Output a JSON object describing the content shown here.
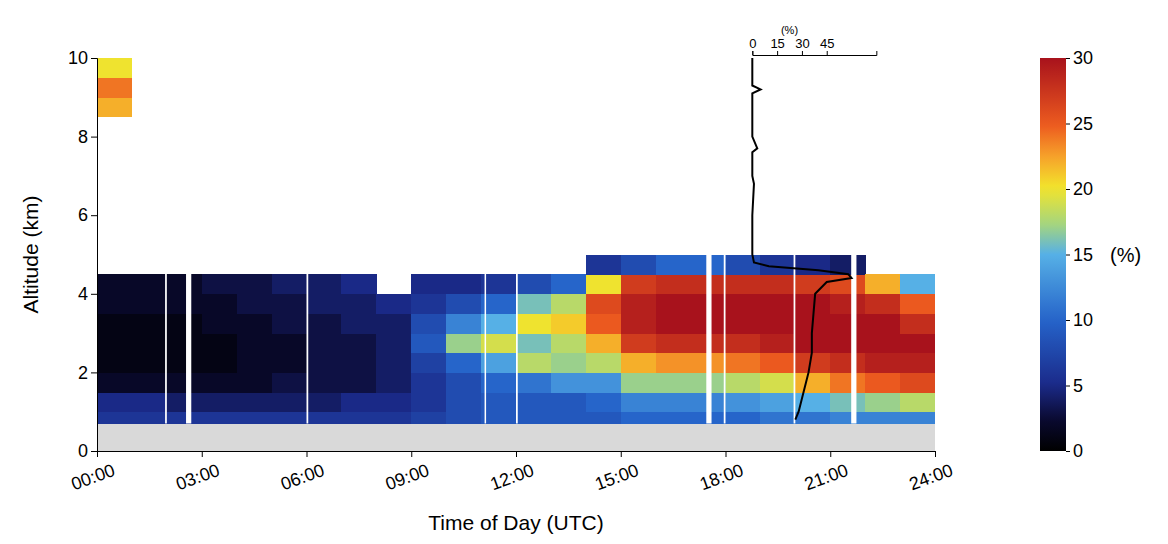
{
  "chart_data": {
    "type": "heatmap",
    "x_label": "Time of Day (UTC)",
    "y_label": "Altitude (km)",
    "xlim": [
      0,
      24
    ],
    "xticks": [
      {
        "value": 0,
        "label": "00:00"
      },
      {
        "value": 3,
        "label": "03:00"
      },
      {
        "value": 6,
        "label": "06:00"
      },
      {
        "value": 9,
        "label": "09:00"
      },
      {
        "value": 12,
        "label": "12:00"
      },
      {
        "value": 15,
        "label": "15:00"
      },
      {
        "value": 18,
        "label": "18:00"
      },
      {
        "value": 21,
        "label": "21:00"
      },
      {
        "value": 24,
        "label": "24:00"
      }
    ],
    "ylim": [
      0,
      10
    ],
    "yticks": [
      0,
      2,
      4,
      6,
      8,
      10
    ],
    "x_edges": [
      0,
      1,
      2,
      3,
      4,
      5,
      6,
      7,
      8,
      9,
      10,
      11,
      12,
      13,
      14,
      15,
      16,
      17,
      18,
      19,
      20,
      21,
      22,
      23,
      24
    ],
    "y_edges": [
      0.7,
      1.0,
      1.5,
      2.0,
      2.5,
      3.0,
      3.5,
      4.0,
      4.5,
      5.0,
      5.5,
      6.0,
      6.5,
      7.0,
      7.5,
      8.0,
      8.5,
      9.0,
      9.5,
      10.0
    ],
    "z": [
      [
        6,
        5,
        2,
        1,
        1,
        1,
        2,
        2,
        null,
        null,
        null,
        null,
        null,
        null,
        null,
        null,
        22,
        24,
        20
      ],
      [
        6,
        5,
        2,
        1,
        1,
        1,
        2,
        2,
        null,
        null,
        null,
        null,
        null,
        null,
        null,
        null,
        null,
        null,
        null
      ],
      [
        6,
        4,
        2,
        1,
        1,
        1,
        2,
        2,
        null,
        null,
        null,
        null,
        null,
        null,
        null,
        null,
        null,
        null,
        null
      ],
      [
        6,
        4,
        2,
        1,
        1,
        2,
        2,
        3,
        null,
        null,
        null,
        null,
        null,
        null,
        null,
        null,
        null,
        null,
        null
      ],
      [
        6,
        4,
        2,
        2,
        2,
        2,
        3,
        3,
        null,
        null,
        null,
        null,
        null,
        null,
        null,
        null,
        null,
        null,
        null
      ],
      [
        6,
        4,
        3,
        2,
        2,
        3,
        3,
        4,
        null,
        null,
        null,
        null,
        null,
        null,
        null,
        null,
        null,
        null,
        null
      ],
      [
        6,
        4,
        3,
        3,
        3,
        3,
        4,
        4,
        null,
        null,
        null,
        null,
        null,
        null,
        null,
        null,
        null,
        null,
        null
      ],
      [
        6,
        5,
        3,
        3,
        3,
        4,
        4,
        5,
        null,
        null,
        null,
        null,
        null,
        null,
        null,
        null,
        null,
        null,
        null
      ],
      [
        6,
        5,
        4,
        4,
        4,
        4,
        5,
        null,
        null,
        null,
        null,
        null,
        null,
        null,
        null,
        null,
        null,
        null,
        null
      ],
      [
        7,
        6,
        6,
        7,
        9,
        8,
        6,
        5,
        null,
        null,
        null,
        null,
        null,
        null,
        null,
        null,
        null,
        null,
        null
      ],
      [
        8,
        8,
        8,
        10,
        17,
        12,
        8,
        5,
        null,
        null,
        null,
        null,
        null,
        null,
        null,
        null,
        null,
        null,
        null
      ],
      [
        9,
        9,
        10,
        14,
        19,
        15,
        10,
        6,
        null,
        null,
        null,
        null,
        null,
        null,
        null,
        null,
        null,
        null,
        null
      ],
      [
        9,
        9,
        11,
        18,
        16,
        20,
        16,
        8,
        null,
        null,
        null,
        null,
        null,
        null,
        null,
        null,
        null,
        null,
        null
      ],
      [
        9,
        9,
        13,
        17,
        18,
        21,
        18,
        10,
        null,
        null,
        null,
        null,
        null,
        null,
        null,
        null,
        null,
        null,
        null
      ],
      [
        9,
        10,
        13,
        18,
        22,
        25,
        26,
        20,
        6,
        null,
        null,
        null,
        null,
        null,
        null,
        null,
        null,
        null,
        null
      ],
      [
        10,
        12,
        17,
        22,
        27,
        29,
        29,
        27,
        8,
        null,
        null,
        null,
        null,
        null,
        null,
        null,
        null,
        null,
        null
      ],
      [
        10,
        12,
        17,
        23,
        28,
        30,
        30,
        28,
        10,
        null,
        null,
        null,
        null,
        null,
        null,
        null,
        null,
        null,
        null
      ],
      [
        10,
        12,
        17,
        23,
        28,
        30,
        30,
        28,
        10,
        null,
        null,
        null,
        null,
        null,
        null,
        null,
        null,
        null,
        null
      ],
      [
        10,
        13,
        18,
        24,
        28,
        30,
        30,
        28,
        8,
        null,
        null,
        null,
        null,
        null,
        null,
        null,
        null,
        null,
        null
      ],
      [
        11,
        14,
        19,
        25,
        29,
        30,
        30,
        28,
        6,
        null,
        null,
        null,
        null,
        null,
        null,
        null,
        null,
        null,
        null
      ],
      [
        11,
        15,
        22,
        27,
        30,
        30,
        30,
        27,
        5,
        null,
        null,
        null,
        null,
        null,
        null,
        null,
        null,
        null,
        null
      ],
      [
        12,
        16,
        24,
        28,
        30,
        30,
        29,
        26,
        4,
        null,
        null,
        null,
        null,
        null,
        null,
        null,
        null,
        null,
        null
      ],
      [
        12,
        17,
        25,
        29,
        30,
        30,
        28,
        22,
        null,
        null,
        null,
        null,
        null,
        null,
        null,
        null,
        null,
        null,
        null
      ],
      [
        12,
        18,
        26,
        29,
        30,
        28,
        25,
        15,
        null,
        null,
        null,
        null,
        null,
        null,
        null,
        null,
        null,
        null,
        null
      ]
    ],
    "gaps": [
      [
        1.95,
        2.0
      ],
      [
        2.55,
        2.7
      ],
      [
        6.0,
        6.05
      ],
      [
        11.1,
        11.13
      ],
      [
        12.0,
        12.05
      ],
      [
        17.45,
        17.6
      ],
      [
        17.95,
        18.0
      ],
      [
        19.95,
        20.0
      ],
      [
        21.6,
        21.75
      ]
    ],
    "colorbar": {
      "range": [
        0,
        30
      ],
      "ticks": [
        0,
        5,
        10,
        15,
        20,
        25,
        30
      ],
      "label": "(%)"
    },
    "profile": {
      "x_label": "(%)",
      "xlim": [
        0,
        75
      ],
      "xticks": [
        0,
        15,
        30,
        45
      ],
      "altitude": [
        0.8,
        1.0,
        1.5,
        2.0,
        2.5,
        3.0,
        3.5,
        4.0,
        4.3,
        4.4,
        4.5,
        4.6,
        4.7,
        4.8,
        5.0,
        6.0,
        6.8,
        7.0,
        7.6,
        7.7,
        8.0,
        9.1,
        9.2,
        9.3,
        10.0
      ],
      "values": [
        26,
        28,
        31,
        34,
        36,
        36,
        37,
        38,
        45,
        60,
        58,
        40,
        10,
        1,
        0,
        0,
        1,
        0,
        0,
        3,
        0,
        0,
        5,
        0,
        0
      ]
    }
  }
}
